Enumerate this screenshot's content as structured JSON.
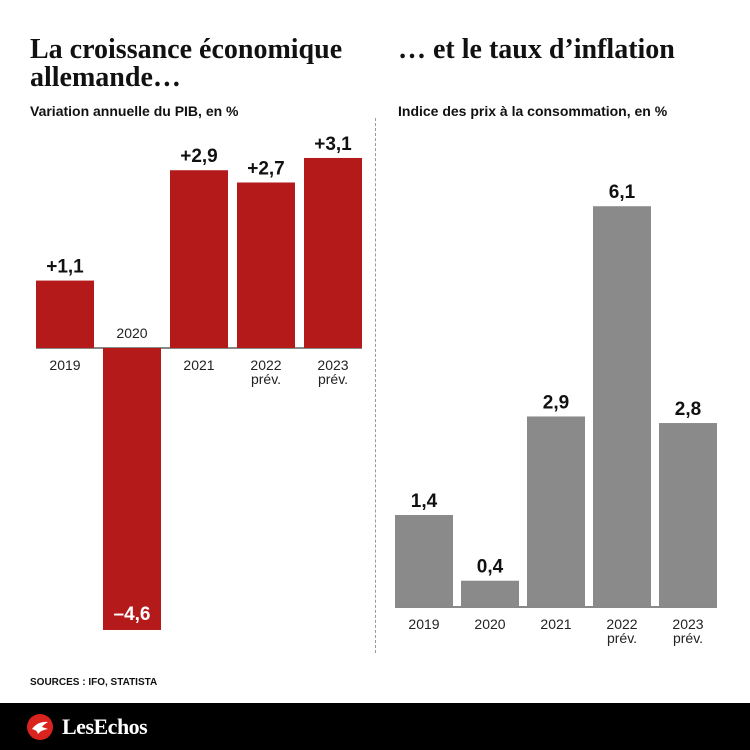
{
  "left": {
    "title": "La croissance économique allemande…",
    "subtitle": "Variation annuelle du PIB, en %"
  },
  "right": {
    "title": "… et le taux d’inflation",
    "subtitle": "Indice des prix à la consommation, en %"
  },
  "sources": "SOURCES : IFO, STATISTA",
  "logo": {
    "text": "LesEchos",
    "icon": "echos-logo-icon"
  },
  "colors": {
    "gdp_bar": "#b41a1a",
    "inflation_bar": "#8a8a8a",
    "axis": "#111111",
    "footer": "#000000"
  },
  "chart_data": [
    {
      "type": "bar",
      "title": "La croissance économique allemande…",
      "subtitle": "Variation annuelle du PIB, en %",
      "categories": [
        "2019",
        "2020",
        "2021",
        "2022 prév.",
        "2023 prév."
      ],
      "values": [
        1.1,
        -4.6,
        2.9,
        2.7,
        3.1
      ],
      "data_labels": [
        "+1,1",
        "–4,6",
        "+2,9",
        "+2,7",
        "+3,1"
      ],
      "ylim": [
        -4.6,
        3.1
      ],
      "grid": false
    },
    {
      "type": "bar",
      "title": "… et le taux d’inflation",
      "subtitle": "Indice des prix à la consommation, en %",
      "categories": [
        "2019",
        "2020",
        "2021",
        "2022 prév.",
        "2023 prév."
      ],
      "values": [
        1.4,
        0.4,
        2.9,
        6.1,
        2.8
      ],
      "data_labels": [
        "1,4",
        "0,4",
        "2,9",
        "6,1",
        "2,8"
      ],
      "ylim": [
        0,
        6.1
      ],
      "grid": false
    }
  ]
}
